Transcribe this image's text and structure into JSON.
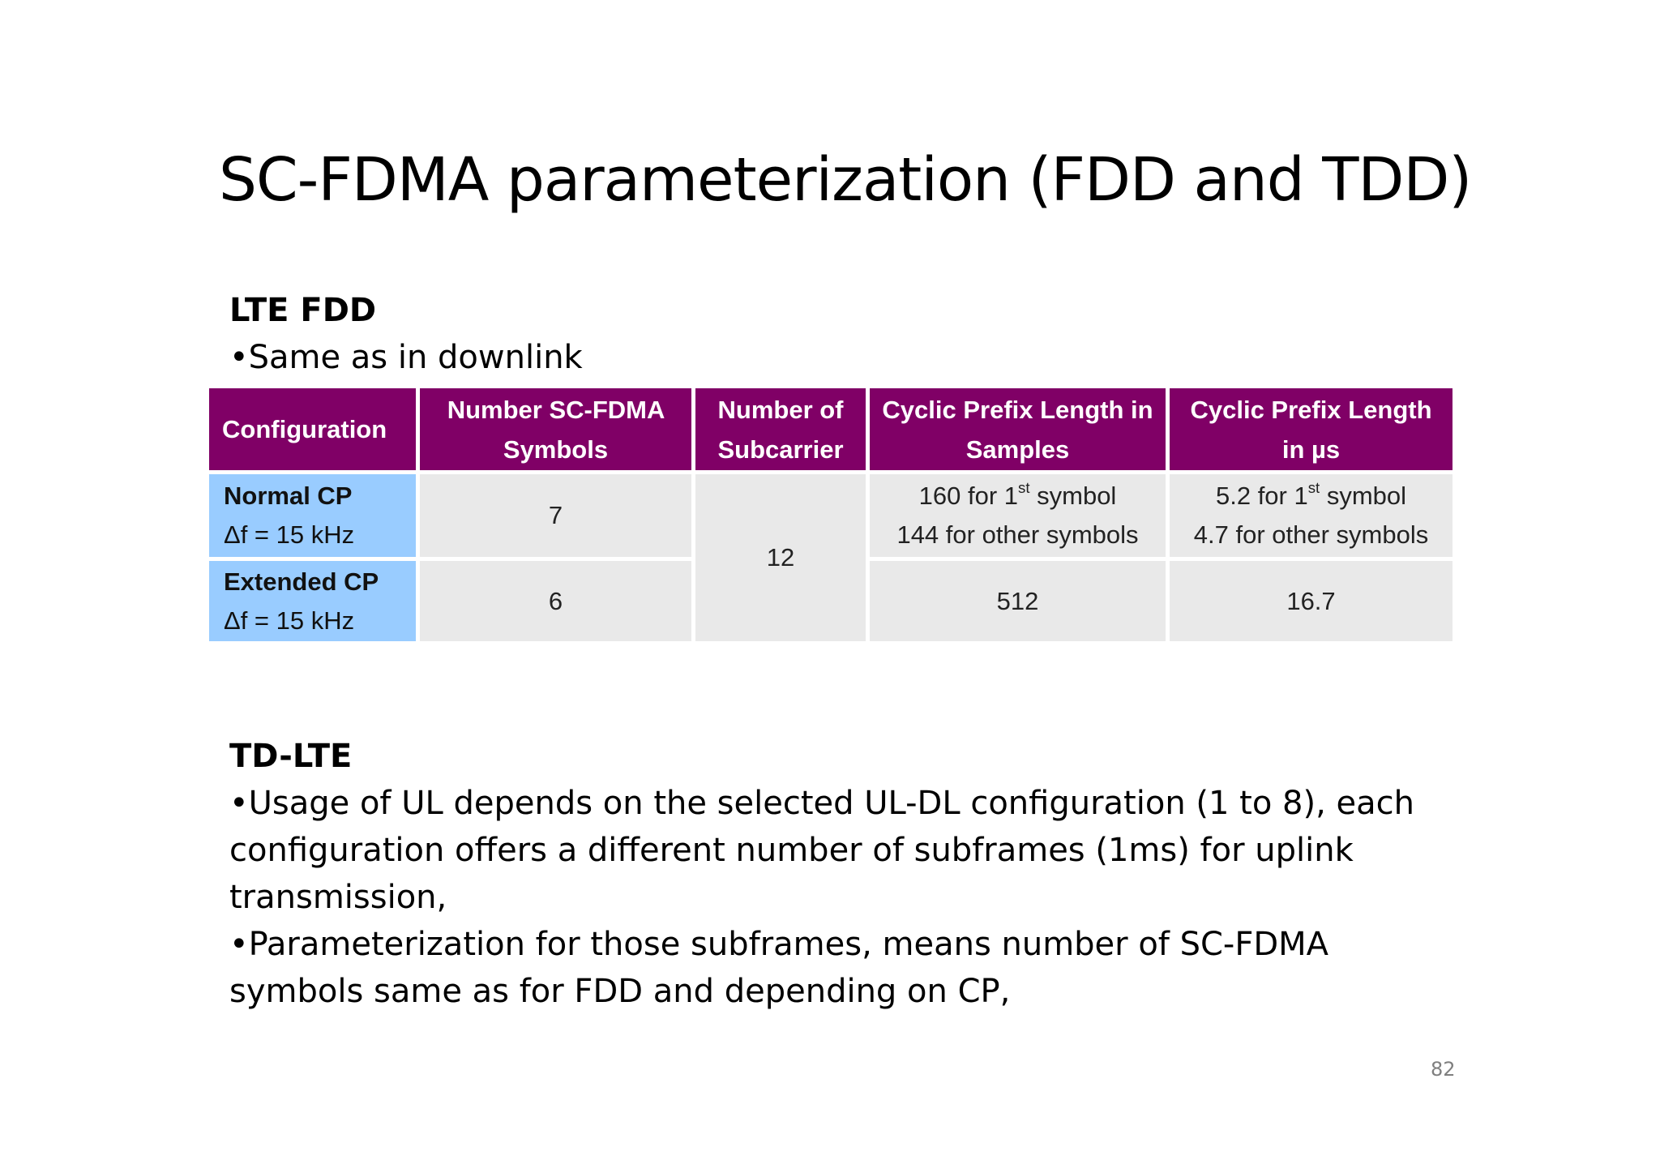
{
  "slide": {
    "title": "SC-FDMA parameterization (FDD and TDD)",
    "page_number": "82"
  },
  "fdd": {
    "heading": "LTE FDD",
    "bullet": "•Same as in downlink"
  },
  "table": {
    "headers": {
      "configuration": "Configuration",
      "symbols_line1": "Number SC-FDMA",
      "symbols_line2": "Symbols",
      "subcarrier_line1": "Number of",
      "subcarrier_line2": "Subcarrier",
      "cp_samples_line1": "Cyclic Prefix Length",
      "cp_samples_line2": "in Samples",
      "cp_us_line1": "Cyclic Prefix",
      "cp_us_line2": "Length in µs"
    },
    "normal": {
      "name": "Normal CP",
      "spacing": "Δf = 15 kHz",
      "symbols": "7",
      "cp_samples_first_a": "160 for 1",
      "cp_samples_first_sup": "st",
      "cp_samples_first_b": " symbol",
      "cp_samples_other": "144 for other symbols",
      "cp_us_first_a": "5.2 for 1",
      "cp_us_first_sup": "st",
      "cp_us_first_b": " symbol",
      "cp_us_other": "4.7 for other symbols"
    },
    "extended": {
      "name": "Extended CP",
      "spacing": "Δf = 15 kHz",
      "symbols": "6",
      "cp_samples": "512",
      "cp_us": "16.7"
    },
    "subcarriers": "12"
  },
  "tdd": {
    "heading": "TD-LTE",
    "bullet1": "•Usage of UL depends on the selected UL-DL configuration (1 to 8), each configuration offers a different number of subframes (1ms) for uplink transmission,",
    "bullet2": "•Parameterization for those subframes, means number of SC-FDMA symbols same as for FDD and depending on CP,"
  }
}
